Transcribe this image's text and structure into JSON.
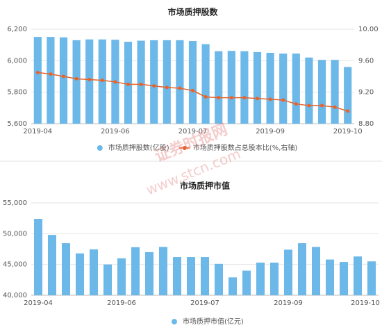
{
  "chart_data": [
    {
      "type": "bar",
      "title": "市场质押股数",
      "categories": [
        "2019-04",
        null,
        null,
        null,
        null,
        null,
        "2019-06",
        null,
        null,
        null,
        null,
        null,
        "2019-07",
        null,
        null,
        null,
        null,
        null,
        "2019-09",
        null,
        null,
        null,
        null,
        null,
        "2019-10"
      ],
      "series": [
        {
          "name": "市场质押股数(亿股)",
          "color": "#6cb8e8",
          "values": [
            6151,
            6151,
            6148,
            6130,
            6135,
            6135,
            6133,
            6120,
            6127,
            6130,
            6130,
            6130,
            6125,
            6105,
            6060,
            6062,
            6060,
            6055,
            6050,
            6045,
            6045,
            6020,
            6005,
            6005,
            5960
          ]
        },
        {
          "name": "市场质押股数占总股本比(%,右轴)",
          "color": "#e8632b",
          "type": "line",
          "axis": "y2",
          "values": [
            9.45,
            9.43,
            9.4,
            9.37,
            9.36,
            9.35,
            9.33,
            9.3,
            9.3,
            9.28,
            9.26,
            9.25,
            9.22,
            9.14,
            9.13,
            9.13,
            9.13,
            9.12,
            9.11,
            9.1,
            9.05,
            9.03,
            9.03,
            9.01,
            8.96
          ]
        }
      ],
      "ylim": [
        5600,
        6200
      ],
      "yticks": [
        {
          "value": 5600,
          "label": "5,600"
        },
        {
          "value": 5800,
          "label": "5,800"
        },
        {
          "value": 6000,
          "label": "6,000"
        },
        {
          "value": 6200,
          "label": "6,200"
        }
      ],
      "y2lim": [
        8.8,
        10
      ],
      "y2ticks": [
        {
          "value": 8.8,
          "label": "8.80"
        },
        {
          "value": 9.2,
          "label": "9.20"
        },
        {
          "value": 9.6,
          "label": "9.60"
        },
        {
          "value": 10,
          "label": "10.00"
        }
      ],
      "grid": true
    },
    {
      "type": "bar",
      "title": "市场质押市值",
      "categories": [
        "2019-04",
        null,
        null,
        null,
        null,
        null,
        "2019-06",
        null,
        null,
        null,
        null,
        null,
        "2019-07",
        null,
        null,
        null,
        null,
        null,
        "2019-09",
        null,
        null,
        null,
        null,
        null,
        "2019-10"
      ],
      "series": [
        {
          "name": "市场质押市值(亿元)",
          "color": "#6cb8e8",
          "values": [
            52400,
            49800,
            48450,
            46800,
            47450,
            45000,
            46000,
            47800,
            47000,
            47850,
            46200,
            46200,
            46200,
            45100,
            42900,
            44000,
            45300,
            45300,
            47400,
            48450,
            47850,
            45800,
            45400,
            46300,
            45500
          ]
        }
      ],
      "ylim": [
        40000,
        55000
      ],
      "yticks": [
        {
          "value": 40000,
          "label": "40,000"
        },
        {
          "value": 45000,
          "label": "45,000"
        },
        {
          "value": 50000,
          "label": "50,000"
        },
        {
          "value": 55000,
          "label": "55,000"
        }
      ],
      "grid": true
    }
  ],
  "watermark": {
    "text": "证券时报网",
    "url": "www.stcn.com"
  }
}
